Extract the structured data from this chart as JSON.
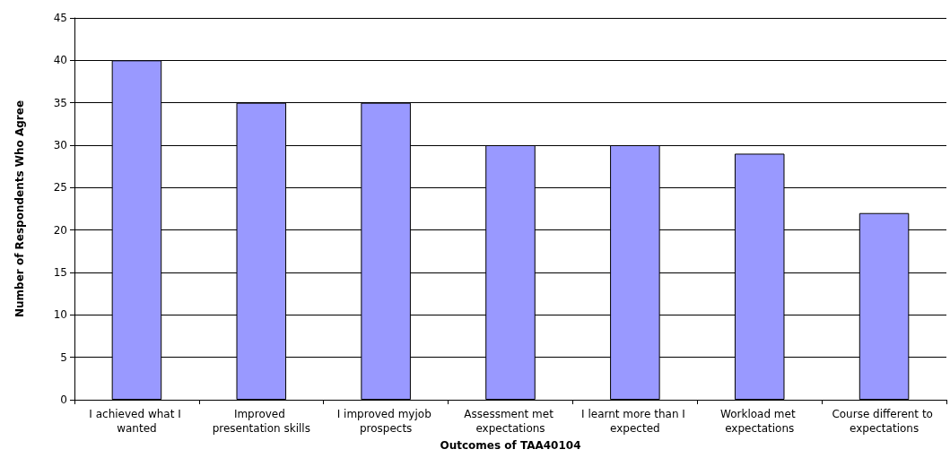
{
  "chart_data": {
    "type": "bar",
    "xlabel": "Outcomes of TAA40104",
    "ylabel": "Number of Respondents Who Agree",
    "categories": [
      "I achieved what I wanted",
      "Improved presentation skills",
      "I improved myjob prospects",
      "Assessment met expectations",
      "I learnt more than I expected",
      "Workload met expectations",
      "Course different to expectations"
    ],
    "values": [
      40,
      35,
      35,
      30,
      30,
      29,
      22
    ],
    "color": "#9999ff",
    "ylim": [
      0,
      45
    ],
    "yticks": [
      0,
      5,
      10,
      15,
      20,
      25,
      30,
      35,
      40,
      45
    ],
    "grid": "y"
  }
}
